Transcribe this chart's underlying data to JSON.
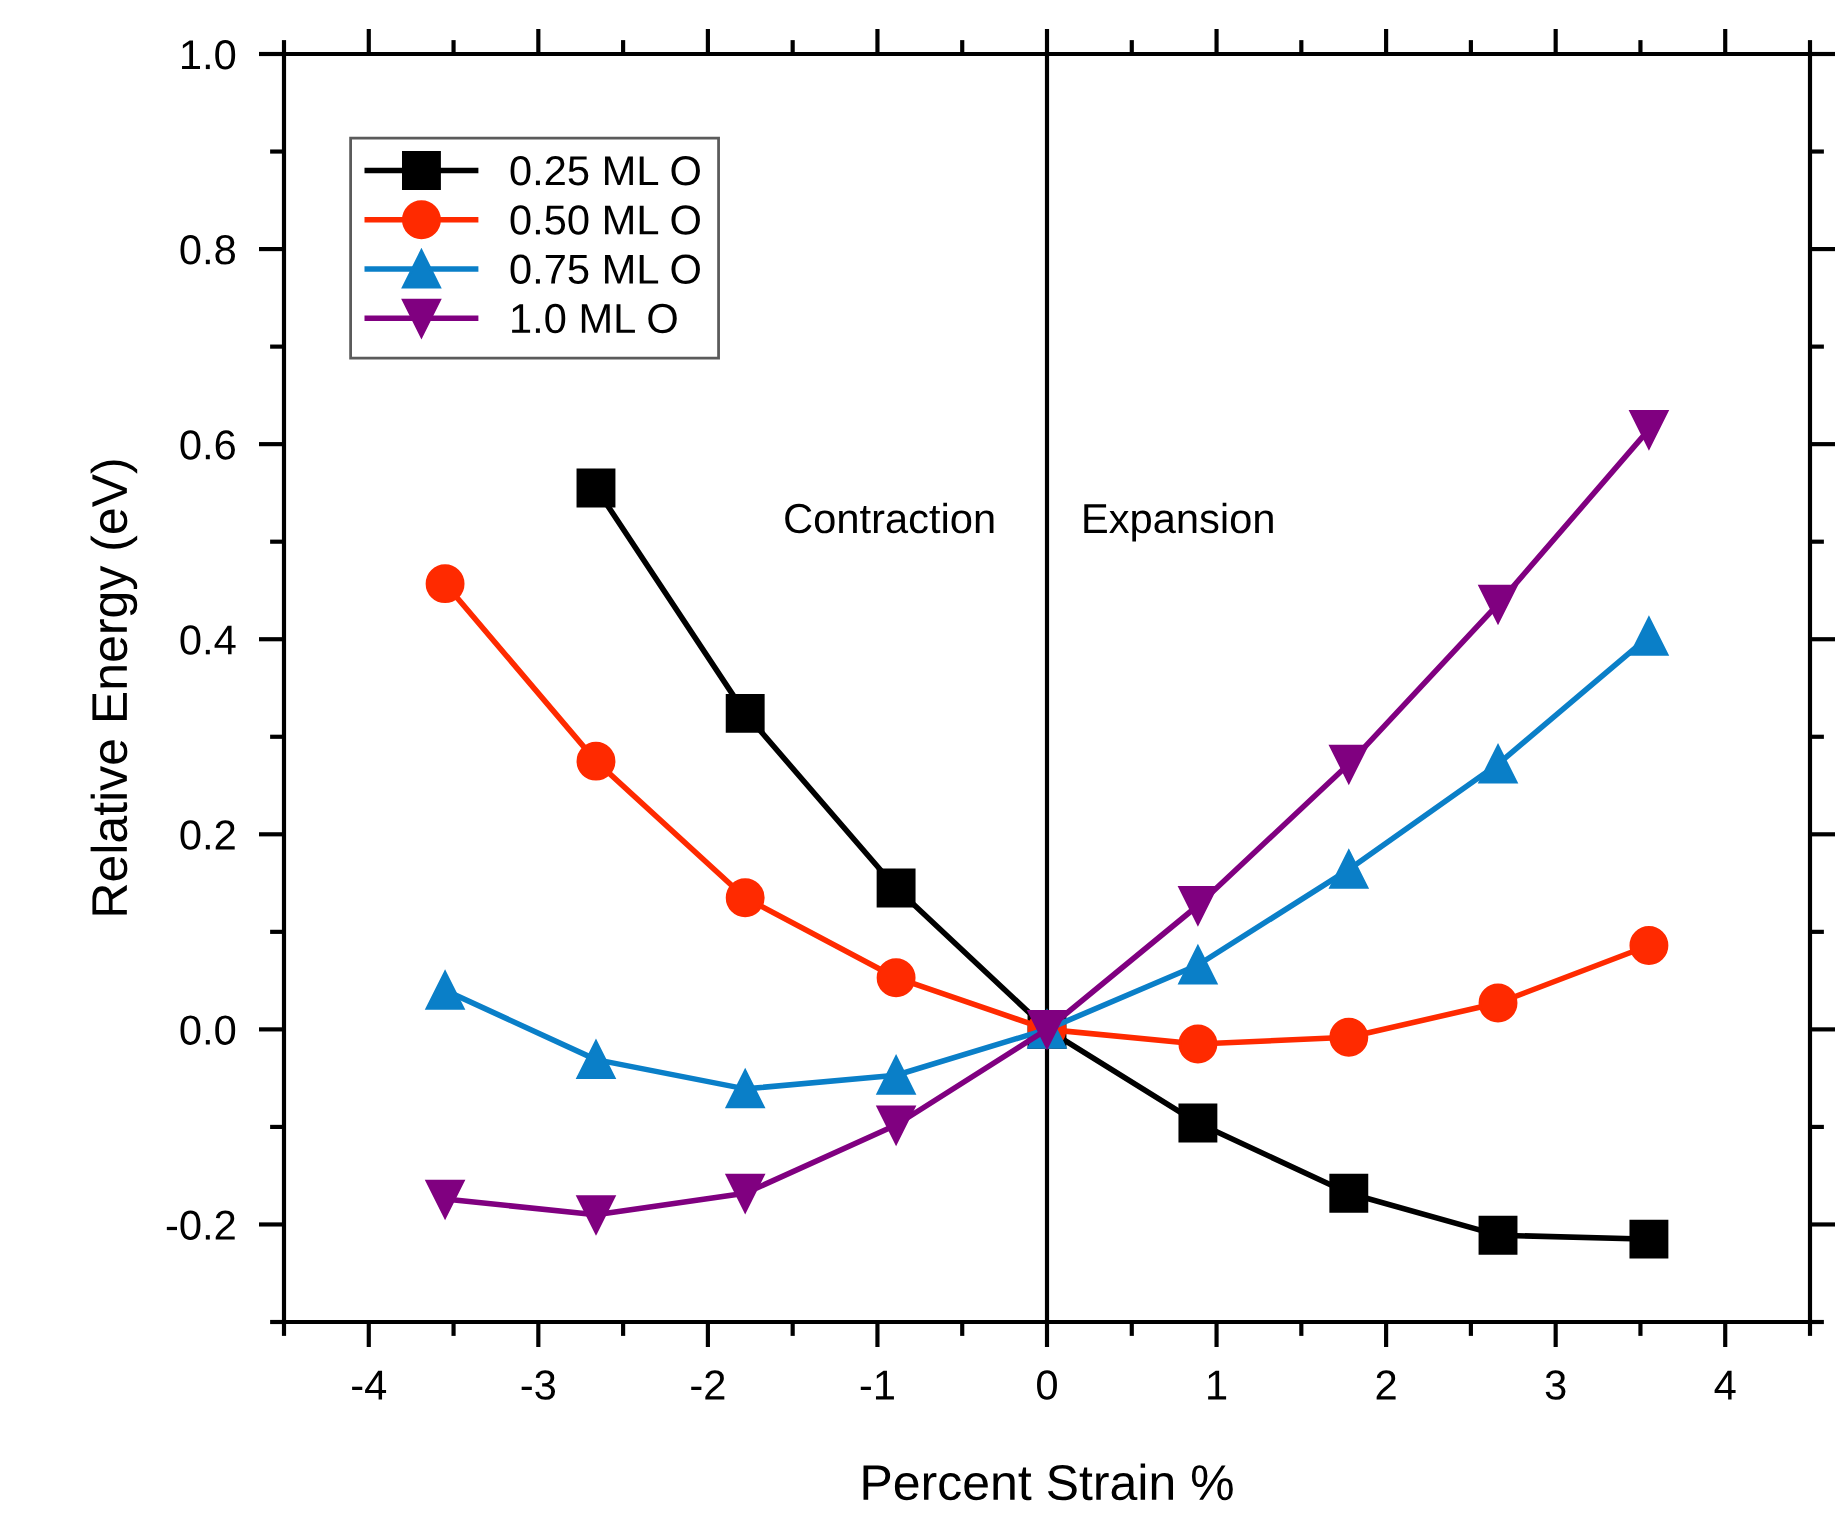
{
  "chart_data": {
    "type": "line",
    "x": [
      -3.55,
      -2.66,
      -1.78,
      -0.89,
      0,
      0.89,
      1.78,
      2.66,
      3.55
    ],
    "series": [
      {
        "name": "0.25 ML O",
        "color": "#000000",
        "marker": "square",
        "values": [
          null,
          0.555,
          0.324,
          0.145,
          0,
          -0.096,
          -0.168,
          -0.211,
          -0.215
        ]
      },
      {
        "name": "0.50 ML O",
        "color": "#ff2a00",
        "marker": "circle",
        "values": [
          0.457,
          0.275,
          0.135,
          0.053,
          0,
          -0.015,
          -0.008,
          0.027,
          0.086
        ]
      },
      {
        "name": "0.75 ML O",
        "color": "#0a7fc8",
        "marker": "triangle",
        "values": [
          0.04,
          -0.031,
          -0.061,
          -0.047,
          0,
          0.066,
          0.164,
          0.272,
          0.403
        ]
      },
      {
        "name": "1.0 ML O",
        "color": "#800080",
        "marker": "triangle_down",
        "values": [
          -0.174,
          -0.19,
          -0.168,
          -0.098,
          0,
          0.127,
          0.272,
          0.436,
          0.615
        ]
      }
    ],
    "xlabel": "Percent Strain %",
    "ylabel": "Relative Energy (eV)",
    "xlim": [
      -4.5,
      4.5
    ],
    "xticks": [
      -4,
      -3,
      -2,
      -1,
      0,
      1,
      2,
      3,
      4
    ],
    "ylim": [
      -0.3,
      1.0
    ],
    "yticks": [
      -0.2,
      {
        "value": 0,
        "label": "0.0"
      },
      0.2,
      0.4,
      0.6,
      0.8,
      {
        "value": 1,
        "label": "1.0"
      }
    ],
    "annotations": [
      "Contraction",
      "Expansion"
    ],
    "ref_lines": [
      {
        "axis": "x",
        "value": 0,
        "color": "#000000"
      }
    ],
    "legend": "top left",
    "grid": false,
    "line_style": "solid"
  }
}
